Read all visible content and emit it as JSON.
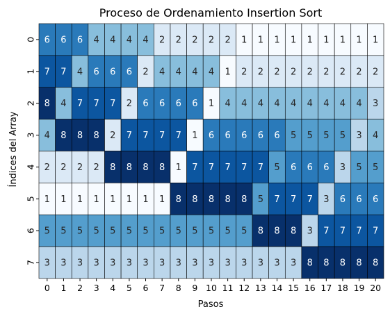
{
  "chart_data": {
    "type": "heatmap",
    "title": "Proceso de Ordenamiento Insertion Sort",
    "xlabel": "Pasos",
    "ylabel": "Índices del Array",
    "x": [
      "0",
      "1",
      "2",
      "3",
      "4",
      "5",
      "6",
      "7",
      "8",
      "9",
      "10",
      "11",
      "12",
      "13",
      "14",
      "15",
      "16",
      "17",
      "18",
      "19",
      "20"
    ],
    "y": [
      "0",
      "1",
      "2",
      "3",
      "4",
      "5",
      "6",
      "7"
    ],
    "colormap": "Blues",
    "vmin": 1,
    "vmax": 8,
    "colorbar": false,
    "annotations": true,
    "cell_border_color": "#000000",
    "values": [
      [
        6,
        6,
        6,
        4,
        4,
        4,
        4,
        2,
        2,
        2,
        2,
        2,
        1,
        1,
        1,
        1,
        1,
        1,
        1,
        1,
        1
      ],
      [
        7,
        7,
        4,
        6,
        6,
        6,
        2,
        4,
        4,
        4,
        4,
        1,
        2,
        2,
        2,
        2,
        2,
        2,
        2,
        2,
        2
      ],
      [
        8,
        4,
        7,
        7,
        7,
        2,
        6,
        6,
        6,
        6,
        1,
        4,
        4,
        4,
        4,
        4,
        4,
        4,
        4,
        4,
        3
      ],
      [
        4,
        8,
        8,
        8,
        2,
        7,
        7,
        7,
        7,
        1,
        6,
        6,
        6,
        6,
        6,
        5,
        5,
        5,
        5,
        3,
        4
      ],
      [
        2,
        2,
        2,
        2,
        8,
        8,
        8,
        8,
        1,
        7,
        7,
        7,
        7,
        7,
        5,
        6,
        6,
        6,
        3,
        5,
        5
      ],
      [
        1,
        1,
        1,
        1,
        1,
        1,
        1,
        1,
        8,
        8,
        8,
        8,
        8,
        5,
        7,
        7,
        7,
        3,
        6,
        6,
        6
      ],
      [
        5,
        5,
        5,
        5,
        5,
        5,
        5,
        5,
        5,
        5,
        5,
        5,
        5,
        8,
        8,
        8,
        3,
        7,
        7,
        7,
        7
      ],
      [
        3,
        3,
        3,
        3,
        3,
        3,
        3,
        3,
        3,
        3,
        3,
        3,
        3,
        3,
        3,
        3,
        8,
        8,
        8,
        8,
        8
      ]
    ]
  }
}
